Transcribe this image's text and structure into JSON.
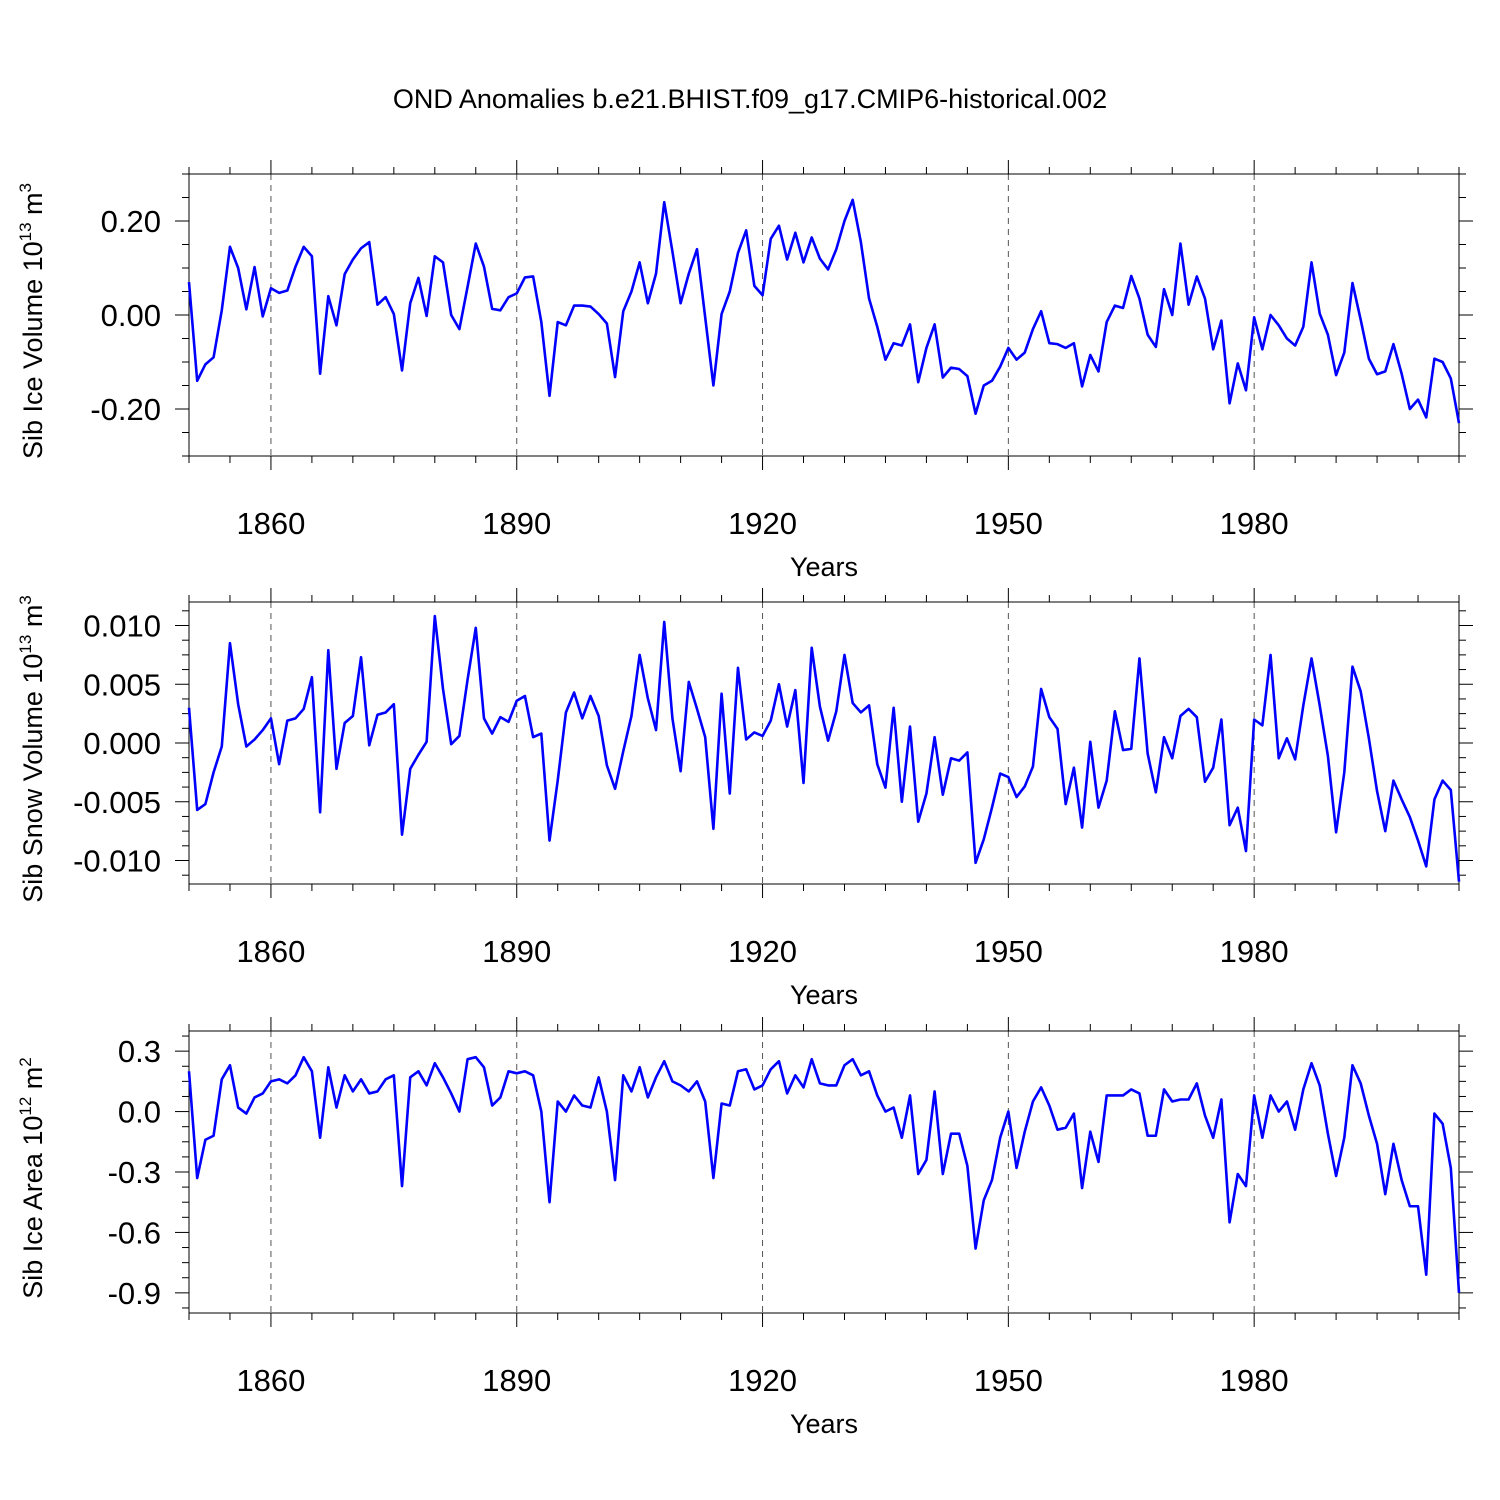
{
  "title": "OND Anomalies b.e21.BHIST.f09_g17.CMIP6-historical.002",
  "colors": {
    "series": "#0000ff",
    "axis": "#000000",
    "grid": "#555555"
  },
  "chart_data": [
    {
      "type": "line",
      "title": "OND Anomalies b.e21.BHIST.f09_g17.CMIP6-historical.002",
      "xlabel": "Years",
      "ylabel": {
        "base": "Sib Ice Volume 10",
        "exp": "13",
        "unit": " m",
        "unit_exp": "3"
      },
      "xlim": [
        1850,
        2005
      ],
      "ylim": [
        -0.3,
        0.3
      ],
      "xticks": [
        1860,
        1890,
        1920,
        1950,
        1980
      ],
      "xtick_labels": [
        "1860",
        "1890",
        "1920",
        "1950",
        "1980"
      ],
      "yticks": [
        0.2,
        0.0,
        -0.2
      ],
      "ytick_labels": [
        "0.20",
        "0.00",
        "-0.20"
      ],
      "x_start": 1850,
      "series": [
        {
          "name": "Sib Ice Volume",
          "values": [
            0.07,
            -0.14,
            -0.105,
            -0.09,
            0.01,
            0.145,
            0.1,
            0.012,
            0.102,
            -0.003,
            0.057,
            0.047,
            0.052,
            0.103,
            0.145,
            0.125,
            -0.125,
            0.04,
            -0.022,
            0.087,
            0.118,
            0.142,
            0.155,
            0.022,
            0.038,
            0.002,
            -0.118,
            0.025,
            0.079,
            -0.002,
            0.125,
            0.112,
            0.0,
            -0.03,
            0.06,
            0.152,
            0.103,
            0.013,
            0.01,
            0.038,
            0.046,
            0.08,
            0.082,
            -0.015,
            -0.172,
            -0.015,
            -0.022,
            0.02,
            0.02,
            0.018,
            0.002,
            -0.018,
            -0.132,
            0.008,
            0.05,
            0.112,
            0.025,
            0.088,
            0.24,
            0.135,
            0.025,
            0.088,
            0.14,
            -0.005,
            -0.15,
            0.002,
            0.05,
            0.132,
            0.18,
            0.062,
            0.042,
            0.162,
            0.19,
            0.118,
            0.175,
            0.112,
            0.165,
            0.12,
            0.097,
            0.14,
            0.2,
            0.245,
            0.155,
            0.035,
            -0.025,
            -0.095,
            -0.06,
            -0.065,
            -0.02,
            -0.143,
            -0.07,
            -0.02,
            -0.133,
            -0.112,
            -0.115,
            -0.13,
            -0.21,
            -0.15,
            -0.14,
            -0.11,
            -0.07,
            -0.095,
            -0.08,
            -0.03,
            0.008,
            -0.06,
            -0.062,
            -0.07,
            -0.06,
            -0.152,
            -0.085,
            -0.12,
            -0.015,
            0.02,
            0.015,
            0.083,
            0.035,
            -0.042,
            -0.068,
            0.055,
            0.0,
            0.152,
            0.022,
            0.082,
            0.035,
            -0.073,
            -0.012,
            -0.188,
            -0.103,
            -0.16,
            -0.005,
            -0.073,
            0.0,
            -0.022,
            -0.05,
            -0.065,
            -0.025,
            0.112,
            0.003,
            -0.042,
            -0.128,
            -0.08,
            0.068,
            -0.01,
            -0.093,
            -0.126,
            -0.12,
            -0.062,
            -0.125,
            -0.2,
            -0.18,
            -0.218,
            -0.093,
            -0.1,
            -0.135,
            -0.23
          ]
        }
      ]
    },
    {
      "type": "line",
      "xlabel": "Years",
      "ylabel": {
        "base": "Sib Snow Volume 10",
        "exp": "13",
        "unit": " m",
        "unit_exp": "3"
      },
      "xlim": [
        1850,
        2005
      ],
      "ylim": [
        -0.012,
        0.012
      ],
      "xticks": [
        1860,
        1890,
        1920,
        1950,
        1980
      ],
      "xtick_labels": [
        "1860",
        "1890",
        "1920",
        "1950",
        "1980"
      ],
      "yticks": [
        0.01,
        0.005,
        0.0,
        -0.005,
        -0.01
      ],
      "ytick_labels": [
        "0.010",
        "0.005",
        "0.000",
        "-0.005",
        "-0.010"
      ],
      "x_start": 1850,
      "series": [
        {
          "name": "Sib Snow Volume",
          "values": [
            0.003,
            -0.0057,
            -0.0052,
            -0.0025,
            -0.0003,
            0.0085,
            0.0033,
            -0.0003,
            0.0003,
            0.0011,
            0.0021,
            -0.0018,
            0.0019,
            0.0021,
            0.0029,
            0.0056,
            -0.0059,
            0.0079,
            -0.0022,
            0.0017,
            0.0023,
            0.0073,
            -0.0002,
            0.0024,
            0.0026,
            0.0033,
            -0.0078,
            -0.0022,
            -0.001,
            0.0001,
            0.0108,
            0.0046,
            -0.0001,
            0.0006,
            0.0054,
            0.0098,
            0.0021,
            0.0008,
            0.0022,
            0.0018,
            0.0036,
            0.004,
            0.0005,
            0.0008,
            -0.0083,
            -0.0032,
            0.0026,
            0.0043,
            0.0021,
            0.004,
            0.0023,
            -0.0019,
            -0.0039,
            -0.0007,
            0.0023,
            0.0075,
            0.0038,
            0.0011,
            0.0103,
            0.0021,
            -0.0024,
            0.0052,
            0.0029,
            0.0005,
            -0.0073,
            0.0042,
            -0.0043,
            0.0064,
            0.0003,
            0.0009,
            0.0006,
            0.0019,
            0.005,
            0.0014,
            0.0045,
            -0.0034,
            0.0081,
            0.0031,
            0.0002,
            0.0027,
            0.0075,
            0.0034,
            0.0026,
            0.0032,
            -0.0018,
            -0.0038,
            0.003,
            -0.005,
            0.0014,
            -0.0067,
            -0.0043,
            0.0005,
            -0.0044,
            -0.0013,
            -0.0015,
            -0.0008,
            -0.0102,
            -0.0082,
            -0.0055,
            -0.0026,
            -0.0029,
            -0.0046,
            -0.0037,
            -0.002,
            0.0046,
            0.0022,
            0.0012,
            -0.0052,
            -0.0021,
            -0.0072,
            0.0001,
            -0.0055,
            -0.0032,
            0.0027,
            -0.0006,
            -0.0005,
            0.0072,
            -0.0009,
            -0.0042,
            0.0005,
            -0.0013,
            0.0023,
            0.0029,
            0.0022,
            -0.0033,
            -0.0021,
            0.002,
            -0.007,
            -0.0055,
            -0.0092,
            0.002,
            0.0015,
            0.0075,
            -0.0013,
            0.0004,
            -0.0014,
            0.0032,
            0.0072,
            0.0032,
            -0.0011,
            -0.0076,
            -0.0025,
            0.0065,
            0.0044,
            0.0004,
            -0.0041,
            -0.0075,
            -0.0032,
            -0.0048,
            -0.0063,
            -0.0083,
            -0.0105,
            -0.0048,
            -0.0032,
            -0.004,
            -0.0118
          ]
        }
      ]
    },
    {
      "type": "line",
      "xlabel": "Years",
      "ylabel": {
        "base": "Sib Ice Area 10",
        "exp": "12",
        "unit": " m",
        "unit_exp": "2"
      },
      "xlim": [
        1850,
        2005
      ],
      "ylim": [
        -1.0,
        0.4
      ],
      "xticks": [
        1860,
        1890,
        1920,
        1950,
        1980
      ],
      "xtick_labels": [
        "1860",
        "1890",
        "1920",
        "1950",
        "1980"
      ],
      "yticks": [
        0.3,
        0.0,
        -0.3,
        -0.6,
        -0.9
      ],
      "ytick_labels": [
        "0.3",
        "0.0",
        "-0.3",
        "-0.6",
        "-0.9"
      ],
      "x_start": 1850,
      "series": [
        {
          "name": "Sib Ice Area",
          "values": [
            0.2,
            -0.33,
            -0.14,
            -0.12,
            0.16,
            0.23,
            0.02,
            -0.01,
            0.07,
            0.09,
            0.15,
            0.16,
            0.14,
            0.18,
            0.27,
            0.2,
            -0.13,
            0.22,
            0.02,
            0.18,
            0.1,
            0.16,
            0.09,
            0.1,
            0.16,
            0.18,
            -0.37,
            0.17,
            0.2,
            0.13,
            0.24,
            0.17,
            0.09,
            0.0,
            0.26,
            0.27,
            0.22,
            0.03,
            0.07,
            0.2,
            0.19,
            0.2,
            0.18,
            0.0,
            -0.45,
            0.05,
            0.0,
            0.08,
            0.03,
            0.02,
            0.17,
            0.0,
            -0.34,
            0.18,
            0.1,
            0.22,
            0.07,
            0.17,
            0.25,
            0.15,
            0.13,
            0.1,
            0.15,
            0.05,
            -0.33,
            0.04,
            0.03,
            0.2,
            0.21,
            0.11,
            0.13,
            0.21,
            0.25,
            0.09,
            0.18,
            0.12,
            0.26,
            0.14,
            0.13,
            0.13,
            0.23,
            0.26,
            0.18,
            0.2,
            0.08,
            0.0,
            0.02,
            -0.13,
            0.08,
            -0.31,
            -0.24,
            0.1,
            -0.31,
            -0.11,
            -0.11,
            -0.27,
            -0.68,
            -0.44,
            -0.34,
            -0.13,
            0.0,
            -0.28,
            -0.1,
            0.05,
            0.12,
            0.03,
            -0.09,
            -0.08,
            -0.01,
            -0.38,
            -0.1,
            -0.25,
            0.08,
            0.08,
            0.08,
            0.11,
            0.09,
            -0.12,
            -0.12,
            0.11,
            0.05,
            0.06,
            0.06,
            0.14,
            -0.02,
            -0.13,
            0.06,
            -0.55,
            -0.31,
            -0.37,
            0.08,
            -0.13,
            0.08,
            0.0,
            0.05,
            -0.09,
            0.11,
            0.24,
            0.13,
            -0.11,
            -0.32,
            -0.13,
            0.23,
            0.14,
            -0.02,
            -0.16,
            -0.41,
            -0.16,
            -0.34,
            -0.47,
            -0.47,
            -0.81,
            -0.01,
            -0.06,
            -0.28,
            -0.9
          ]
        }
      ]
    }
  ]
}
